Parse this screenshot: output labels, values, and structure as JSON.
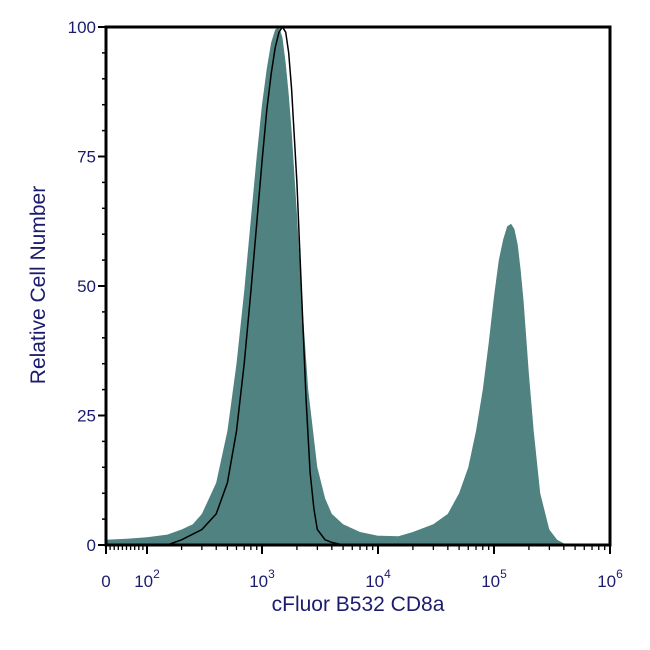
{
  "chart_data": {
    "type": "area",
    "title": "",
    "xlabel": "cFluor B532 CD8a",
    "ylabel": "Relative Cell Number",
    "x_scale": "biexponential-log",
    "xlim": [
      0,
      1000000
    ],
    "ylim": [
      0,
      100
    ],
    "y_ticks": [
      {
        "value": 0,
        "label": "0"
      },
      {
        "value": 25,
        "label": "25"
      },
      {
        "value": 50,
        "label": "50"
      },
      {
        "value": 75,
        "label": "75"
      },
      {
        "value": 100,
        "label": "100"
      }
    ],
    "x_ticks": [
      {
        "value": 0,
        "base": "0",
        "exp": ""
      },
      {
        "value": 100,
        "base": "10",
        "exp": "2"
      },
      {
        "value": 1000,
        "base": "10",
        "exp": "3"
      },
      {
        "value": 10000,
        "base": "10",
        "exp": "4"
      },
      {
        "value": 100000,
        "base": "10",
        "exp": "5"
      },
      {
        "value": 1000000,
        "base": "10",
        "exp": "6"
      }
    ],
    "grid": false,
    "legend": "none",
    "colors": {
      "filled": "#4f8280",
      "outline": "#000000",
      "axis": "#000000",
      "text": "#1c1c6e"
    },
    "series": [
      {
        "style": "filled",
        "x": [
          0,
          50,
          100,
          150,
          200,
          250,
          300,
          400,
          500,
          600,
          700,
          800,
          900,
          1000,
          1100,
          1200,
          1300,
          1400,
          1500,
          1600,
          1700,
          1800,
          2000,
          2200,
          2500,
          3000,
          3500,
          4000,
          5000,
          7000,
          10000,
          15000,
          20000,
          30000,
          40000,
          50000,
          60000,
          70000,
          80000,
          90000,
          100000,
          110000,
          120000,
          130000,
          140000,
          150000,
          160000,
          170000,
          180000,
          200000,
          220000,
          250000,
          300000,
          350000,
          400000
        ],
        "y": [
          1,
          1.2,
          1.5,
          2,
          3,
          4,
          6,
          12,
          22,
          35,
          49,
          63,
          75,
          85,
          92,
          97,
          99.5,
          100,
          98,
          93,
          87,
          80,
          64,
          48,
          30,
          15,
          9,
          6,
          4,
          2.5,
          1.8,
          1.7,
          2.5,
          4,
          6,
          10,
          15,
          22,
          30,
          39,
          48,
          55,
          59,
          61.5,
          62,
          61,
          58,
          53,
          47,
          33,
          22,
          10,
          3,
          1,
          0.3
        ]
      },
      {
        "style": "outline",
        "x": [
          150,
          200,
          300,
          400,
          500,
          600,
          700,
          800,
          900,
          1000,
          1100,
          1200,
          1300,
          1400,
          1500,
          1600,
          1700,
          1800,
          2000,
          2200,
          2400,
          2600,
          2800,
          3000,
          3500,
          4000,
          5000
        ],
        "y": [
          0,
          1,
          3,
          6,
          12,
          22,
          35,
          49,
          62,
          74,
          84,
          91,
          96,
          99,
          100,
          99,
          95,
          88,
          70,
          48,
          28,
          14,
          7,
          3,
          1,
          0.5,
          0
        ]
      }
    ]
  }
}
